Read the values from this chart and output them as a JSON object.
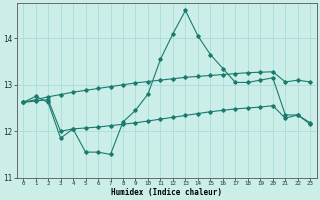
{
  "xlabel": "Humidex (Indice chaleur)",
  "background_color": "#cceee8",
  "grid_color": "#aaddda",
  "line_color": "#1a7a6e",
  "xlim": [
    -0.5,
    23.5
  ],
  "ylim": [
    11.0,
    14.75
  ],
  "yticks": [
    11,
    12,
    13,
    14
  ],
  "xticks": [
    0,
    1,
    2,
    3,
    4,
    5,
    6,
    7,
    8,
    9,
    10,
    11,
    12,
    13,
    14,
    15,
    16,
    17,
    18,
    19,
    20,
    21,
    22,
    23
  ],
  "series1_x": [
    0,
    1,
    2,
    3,
    4,
    5,
    6,
    7,
    8,
    9,
    10,
    11,
    12,
    13,
    14,
    15,
    16,
    17,
    18,
    19,
    20,
    21,
    22,
    23
  ],
  "series1_y": [
    12.62,
    12.75,
    12.62,
    11.85,
    12.05,
    11.55,
    11.55,
    11.5,
    12.2,
    12.45,
    12.8,
    13.55,
    14.1,
    14.6,
    14.05,
    13.65,
    13.35,
    13.05,
    13.05,
    13.1,
    13.15,
    12.35,
    12.35,
    12.15
  ],
  "series2_x": [
    0,
    1,
    2,
    3,
    4,
    5,
    6,
    7,
    8,
    9,
    10,
    11,
    12,
    13,
    14,
    15,
    16,
    17,
    18,
    19,
    20,
    21,
    22,
    23
  ],
  "series2_y": [
    12.62,
    12.65,
    12.68,
    12.0,
    12.05,
    12.07,
    12.09,
    12.12,
    12.15,
    12.18,
    12.22,
    12.26,
    12.3,
    12.34,
    12.38,
    12.42,
    12.45,
    12.48,
    12.5,
    12.52,
    12.55,
    12.28,
    12.35,
    12.18
  ],
  "series3_x": [
    0,
    1,
    2,
    3,
    4,
    5,
    6,
    7,
    8,
    9,
    10,
    11,
    12,
    13,
    14,
    15,
    16,
    17,
    18,
    19,
    20,
    21,
    22,
    23
  ],
  "series3_y": [
    12.62,
    12.68,
    12.74,
    12.79,
    12.84,
    12.88,
    12.92,
    12.96,
    13.0,
    13.04,
    13.07,
    13.1,
    13.13,
    13.16,
    13.18,
    13.2,
    13.22,
    13.24,
    13.26,
    13.27,
    13.28,
    13.06,
    13.1,
    13.06
  ]
}
